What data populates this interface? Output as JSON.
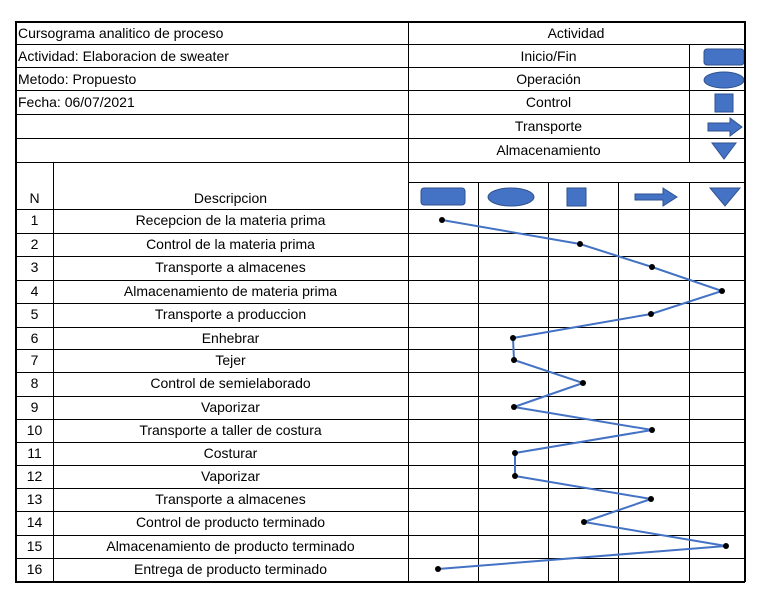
{
  "header": {
    "title": "Cursograma analitico de proceso",
    "actividad": "Actividad: Elaboracion de sweater",
    "metodo": "Metodo: Propuesto",
    "fecha": "Fecha: 06/07/2021",
    "activity_heading": "Actividad"
  },
  "legend": [
    {
      "label": "Inicio/Fin",
      "symbol": "rounded-rect-icon"
    },
    {
      "label": "Operación",
      "symbol": "ellipse-icon"
    },
    {
      "label": "Control",
      "symbol": "square-icon"
    },
    {
      "label": "Transporte",
      "symbol": "arrow-right-icon"
    },
    {
      "label": "Almacenamiento",
      "symbol": "triangle-down-icon"
    }
  ],
  "columns": {
    "n": "N",
    "descripcion": "Descripcion"
  },
  "symbol_color": "#4472C4",
  "line_color": "#4472C4",
  "steps": [
    {
      "n": "1",
      "desc": "Recepcion de la materia prima",
      "activity": 0
    },
    {
      "n": "2",
      "desc": "Control de la materia prima",
      "activity": 2
    },
    {
      "n": "3",
      "desc": "Transporte a almacenes",
      "activity": 3
    },
    {
      "n": "4",
      "desc": "Almacenamiento de materia prima",
      "activity": 4
    },
    {
      "n": "5",
      "desc": "Transporte a produccion",
      "activity": 3
    },
    {
      "n": "6",
      "desc": "Enhebrar",
      "activity": 1
    },
    {
      "n": "7",
      "desc": "Tejer",
      "activity": 1
    },
    {
      "n": "8",
      "desc": "Control de semielaborado",
      "activity": 2
    },
    {
      "n": "9",
      "desc": "Vaporizar",
      "activity": 1
    },
    {
      "n": "10",
      "desc": "Transporte a taller de costura",
      "activity": 3
    },
    {
      "n": "11",
      "desc": "Costurar",
      "activity": 1
    },
    {
      "n": "12",
      "desc": "Vaporizar",
      "activity": 1
    },
    {
      "n": "13",
      "desc": "Transporte a almacenes",
      "activity": 3
    },
    {
      "n": "14",
      "desc": "Control de producto terminado",
      "activity": 2
    },
    {
      "n": "15",
      "desc": "Almacenamiento de producto terminado",
      "activity": 4
    },
    {
      "n": "16",
      "desc": "Entrega de producto terminado",
      "activity": 0
    }
  ]
}
